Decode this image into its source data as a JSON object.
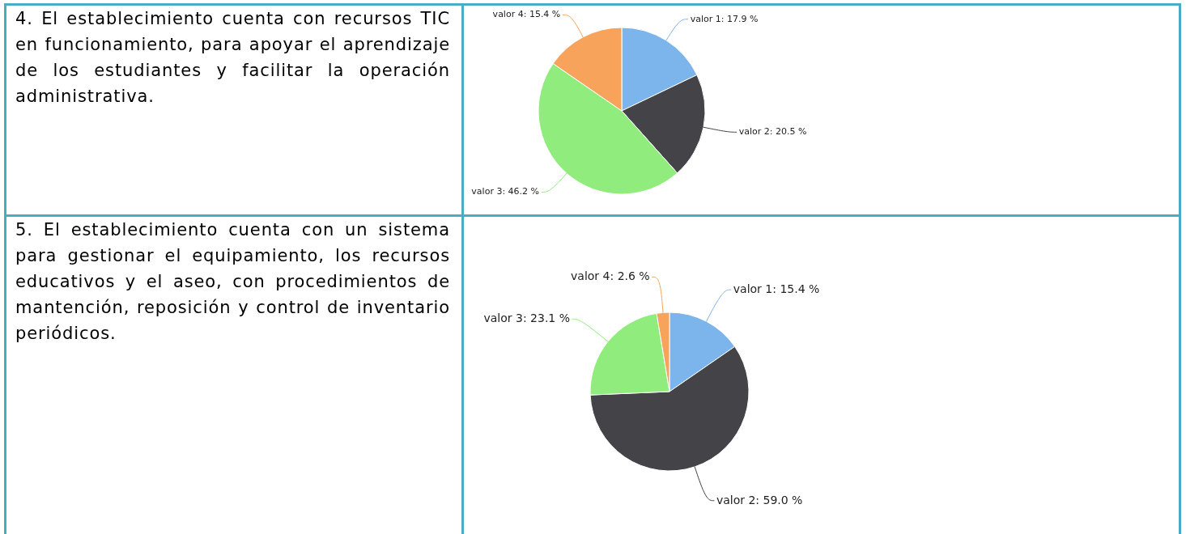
{
  "chart_data": [
    {
      "type": "pie",
      "title": "4. El establecimiento cuenta con recursos TIC en funcionamiento, para apoyar el aprendizaje de los estudiantes y facilitar la operación administrativa.",
      "categories": [
        "valor 1",
        "valor 2",
        "valor 3",
        "valor 4"
      ],
      "values": [
        17.9,
        20.5,
        46.2,
        15.4
      ],
      "value_labels": [
        "17.9 %",
        "20.5 %",
        "46.2 %",
        "15.4 %"
      ],
      "colors": [
        "#7cb5ec",
        "#434348",
        "#90ed7d",
        "#f7a35c"
      ]
    },
    {
      "type": "pie",
      "title": "5. El establecimiento cuenta con un sistema para gestionar el equipamiento, los recursos educativos y el aseo, con procedimientos de mantención, reposición y control de inventario periódicos.",
      "categories": [
        "valor 1",
        "valor 2",
        "valor 3",
        "valor 4"
      ],
      "values": [
        15.4,
        59.0,
        23.1,
        2.6
      ],
      "value_labels": [
        "15.4 %",
        "59.0 %",
        "23.1 %",
        "2.6 %"
      ],
      "colors": [
        "#7cb5ec",
        "#434348",
        "#90ed7d",
        "#f7a35c"
      ]
    }
  ]
}
